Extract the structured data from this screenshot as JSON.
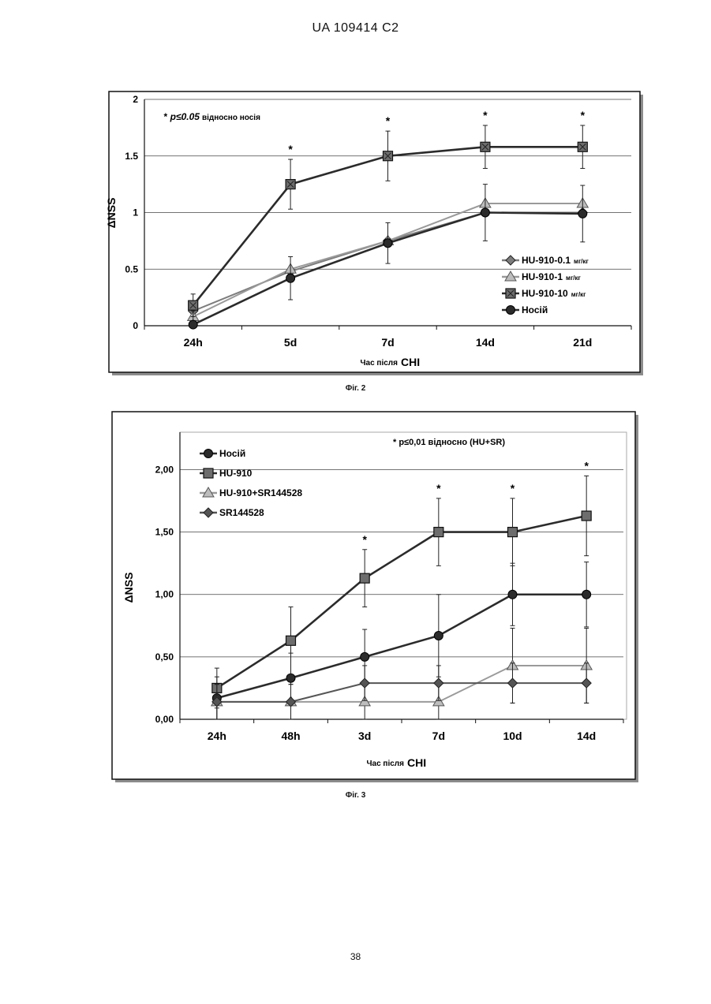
{
  "header": {
    "patent_id": "UA   109414   C2"
  },
  "page_number": "38",
  "chart_data": [
    {
      "type": "line",
      "caption": "Фіг. 2",
      "annotation": "* p≤0.05 відносно носія",
      "annotation_parts": {
        "star": "*",
        "p": "p≤0.05",
        "rest": "відносно носія"
      },
      "xlabel": "Час після",
      "xlabel_suffix": "CHI",
      "ylabel": "ΔNSS",
      "categories": [
        "24h",
        "5d",
        "7d",
        "14d",
        "21d"
      ],
      "ylim": [
        0,
        2
      ],
      "yticks": [
        "0",
        "0.5",
        "1",
        "1.5",
        "2"
      ],
      "grid": true,
      "legend_position": "bottom-right",
      "significance": [
        "",
        "*",
        "*",
        "*",
        "*"
      ],
      "series": [
        {
          "name": "HU-910-0.1",
          "unit": "мг/кг",
          "marker": "diamond",
          "color": "#7d7d7d",
          "values": [
            0.13,
            0.48,
            0.75,
            1.0,
            1.0
          ]
        },
        {
          "name": "HU-910-1",
          "unit": "мг/кг",
          "marker": "triangle",
          "color": "#9a9a9a",
          "values": [
            0.08,
            0.5,
            0.75,
            1.08,
            1.08
          ]
        },
        {
          "name": "HU-910-10",
          "unit": "мг/кг",
          "marker": "square-x",
          "color": "#2b2b2b",
          "values": [
            0.18,
            1.25,
            1.5,
            1.58,
            1.58
          ],
          "errors": [
            0.1,
            0.22,
            0.22,
            0.19,
            0.19
          ]
        },
        {
          "name": "Носій",
          "unit": "",
          "marker": "circle",
          "color": "#2b2b2b",
          "values": [
            0.01,
            0.42,
            0.73,
            1.0,
            0.99
          ],
          "errors": [
            0.12,
            0.19,
            0.18,
            0.25,
            0.25
          ]
        }
      ]
    },
    {
      "type": "line",
      "caption": "Фіг. 3",
      "annotation": "* p≤0,01 відносно (HU+SR)",
      "xlabel": "Час після",
      "xlabel_suffix": "CHI",
      "ylabel": "ΔNSS",
      "categories": [
        "24h",
        "48h",
        "3d",
        "7d",
        "10d",
        "14d"
      ],
      "ylim": [
        0,
        2.3
      ],
      "yticks": [
        "0,00",
        "0,50",
        "1,00",
        "1,50",
        "2,00"
      ],
      "grid": true,
      "legend_position": "top-left",
      "significance": [
        "",
        "",
        "*",
        "*",
        "*",
        "*"
      ],
      "series": [
        {
          "name": "Носій",
          "marker": "circle",
          "color": "#2b2b2b",
          "values": [
            0.17,
            0.33,
            0.5,
            0.67,
            1.0,
            1.0
          ],
          "errors": [
            0.17,
            0.2,
            0.22,
            0.33,
            0.25,
            0.26
          ]
        },
        {
          "name": "HU-910",
          "marker": "square",
          "color": "#2b2b2b",
          "values": [
            0.25,
            0.63,
            1.13,
            1.5,
            1.5,
            1.63
          ],
          "errors": [
            0.16,
            0.27,
            0.23,
            0.27,
            0.27,
            0.32
          ]
        },
        {
          "name": "HU-910+SR144528",
          "marker": "triangle",
          "color": "#9a9a9a",
          "values": [
            0.14,
            0.14,
            0.14,
            0.14,
            0.43,
            0.43
          ],
          "errors": [
            0.14,
            0.14,
            0.14,
            0.14,
            0.3,
            0.3
          ]
        },
        {
          "name": "SR144528",
          "marker": "diamond",
          "color": "#555555",
          "values": [
            0.14,
            0.14,
            0.29,
            0.29,
            0.29,
            0.29
          ],
          "errors": [
            0.14,
            0.14,
            0.14,
            0.14,
            0.16,
            0.16
          ]
        }
      ]
    }
  ]
}
